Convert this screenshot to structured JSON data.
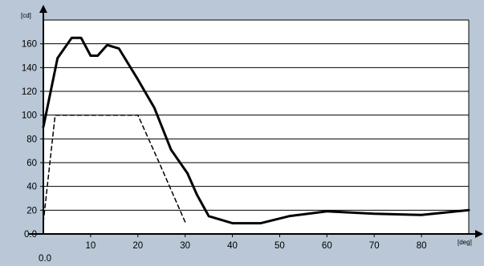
{
  "chart_data": {
    "type": "line",
    "title": "",
    "xlabel": "[deg]",
    "ylabel": "[cd]",
    "xlim": [
      0,
      90
    ],
    "ylim": [
      0,
      180
    ],
    "x_ticks": [
      10,
      20,
      30,
      40,
      50,
      60,
      70,
      80
    ],
    "y_ticks": [
      0,
      20,
      40,
      60,
      80,
      100,
      120,
      140,
      160
    ],
    "x_tick_labels": [
      "10",
      "20",
      "30",
      "40",
      "50",
      "60",
      "70",
      "80"
    ],
    "y_tick_labels": [
      "0.0",
      "20",
      "40",
      "60",
      "80",
      "100",
      "120",
      "140",
      "160"
    ],
    "x_origin_label": "0.0",
    "grid": "horizontal",
    "series": [
      {
        "style": "solid",
        "color": "#000000",
        "points": [
          [
            0,
            90
          ],
          [
            3,
            148
          ],
          [
            6,
            165
          ],
          [
            8,
            165
          ],
          [
            10,
            150
          ],
          [
            11.5,
            150
          ],
          [
            13.5,
            159
          ],
          [
            16,
            156
          ],
          [
            20,
            130
          ],
          [
            23.5,
            106
          ],
          [
            27,
            71
          ],
          [
            30.5,
            51
          ],
          [
            32.5,
            33
          ],
          [
            35,
            15
          ],
          [
            40,
            9
          ],
          [
            46,
            9
          ],
          [
            52,
            15
          ],
          [
            60,
            19
          ],
          [
            70,
            17
          ],
          [
            80,
            16
          ],
          [
            90,
            20
          ]
        ]
      },
      {
        "style": "dashed",
        "color": "#000000",
        "points": [
          [
            0,
            10
          ],
          [
            2.5,
            100
          ],
          [
            20,
            100
          ],
          [
            24.5,
            60
          ],
          [
            30,
            10
          ]
        ]
      }
    ]
  },
  "colors": {
    "background": "#b9c7d6",
    "plot_area": "#ffffff",
    "grid": "#000000",
    "series": "#000000"
  }
}
